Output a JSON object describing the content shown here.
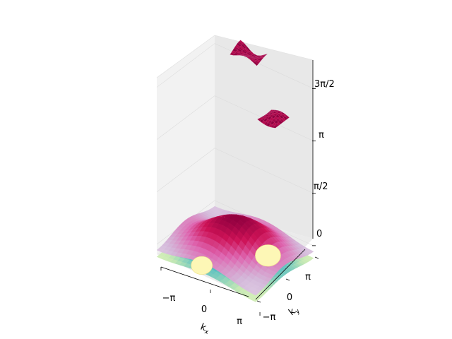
{
  "chart_data": {
    "type": "surface",
    "xlabel": "k_x",
    "ylabel": "k_y",
    "zlabel": "",
    "x_ticks": [
      "−π",
      "0",
      "π"
    ],
    "y_ticks": [
      "−π",
      "0",
      "π"
    ],
    "z_ticks": [
      "0",
      "π/2",
      "π",
      "3π/2"
    ],
    "xlim": [
      -3.14,
      3.14
    ],
    "ylim": [
      -3.14,
      3.14
    ],
    "zlim": [
      -0.3,
      5.0
    ],
    "grid": true,
    "colormaps": [
      "PuRd",
      "YlGnBu"
    ],
    "series": [
      {
        "kind": "surface",
        "colormap": "YlGnBu",
        "base_z": -0.15,
        "amplitude": 0.15
      },
      {
        "kind": "surface",
        "colormap": "PuRd",
        "base_z": 0.2,
        "amplitude": 0.25
      },
      {
        "kind": "patch",
        "colormap": "PuRd",
        "z": 5.05,
        "x_range": [
          -1.5,
          0.2
        ],
        "y_range": [
          -3.14,
          -2.0
        ]
      },
      {
        "kind": "patch",
        "colormap": "PuRd",
        "z": 4.4,
        "x_range": [
          2.0,
          3.14
        ],
        "y_range": [
          -0.5,
          1.0
        ]
      }
    ]
  }
}
